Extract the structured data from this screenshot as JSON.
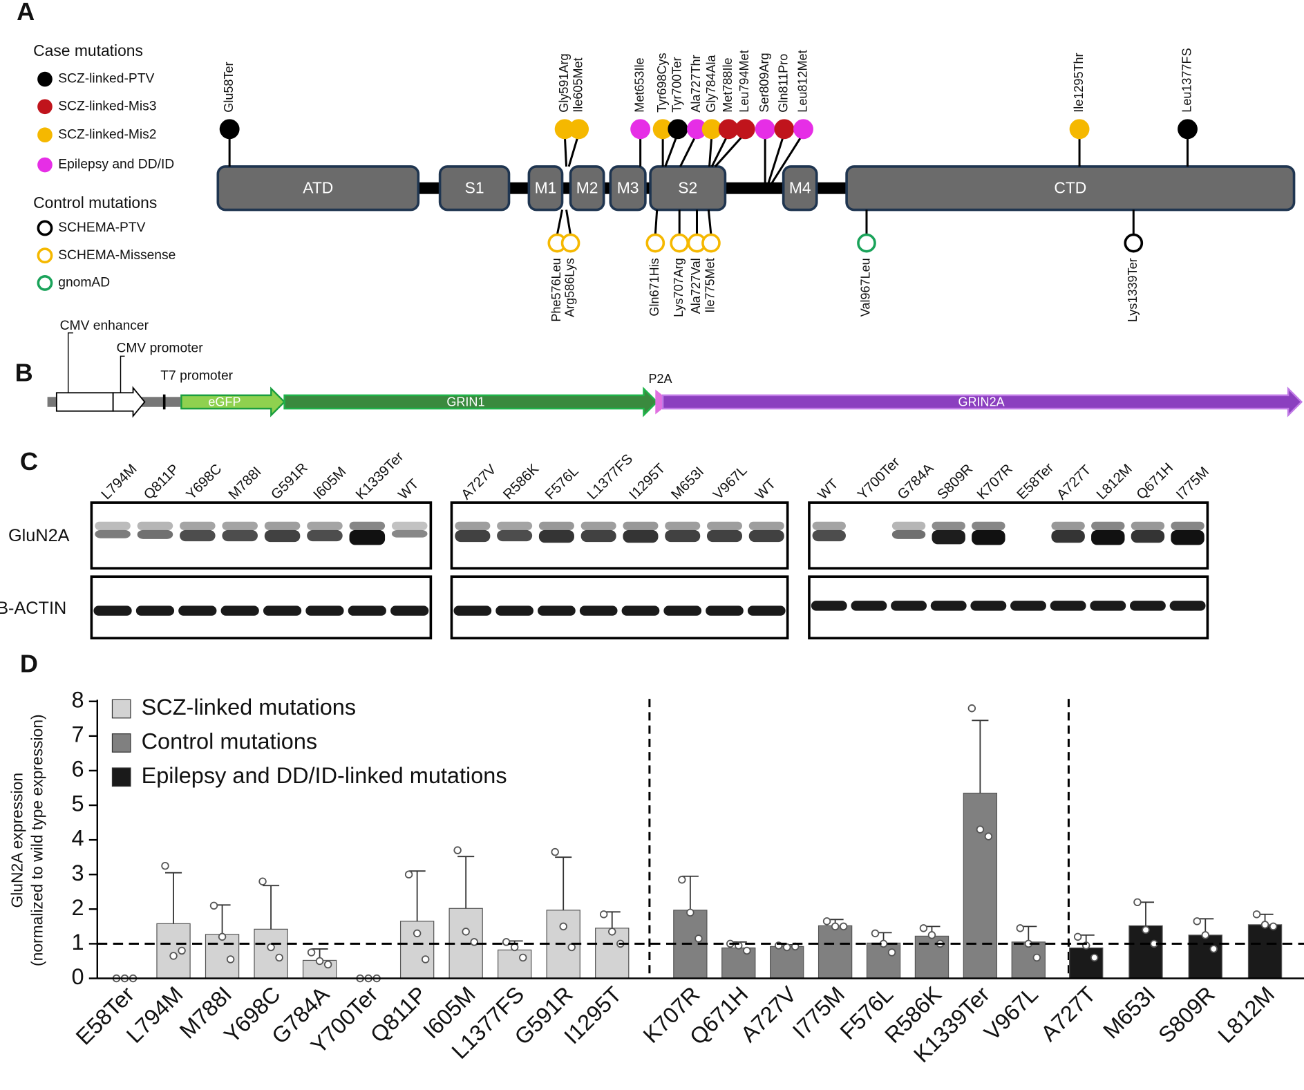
{
  "panel_a": {
    "label": "A",
    "legend": {
      "case_title": "Case mutations",
      "case": [
        {
          "name": "SCZ-linked-PTV",
          "color": "#000000"
        },
        {
          "name": "SCZ-linked-Mis3",
          "color": "#c0141c"
        },
        {
          "name": "SCZ-linked-Mis2",
          "color": "#f5b800"
        },
        {
          "name": "Epilepsy and DD/ID",
          "color": "#e62ee6"
        }
      ],
      "control_title": "Control mutations",
      "control": [
        {
          "name": "SCHEMA-PTV",
          "color": "#000000"
        },
        {
          "name": "SCHEMA-Missense",
          "color": "#f5b800"
        },
        {
          "name": "gnomAD",
          "color": "#1aa35a"
        }
      ]
    },
    "domains": [
      "ATD",
      "S1",
      "M1",
      "M2",
      "M3",
      "S2",
      "M4",
      "CTD"
    ],
    "case_mutations": [
      {
        "label": "Glu58Ter",
        "color": "#000000"
      },
      {
        "label": "Gly591Arg",
        "color": "#f5b800"
      },
      {
        "label": "Ile605Met",
        "color": "#f5b800"
      },
      {
        "label": "Met653Ile",
        "color": "#e62ee6"
      },
      {
        "label": "Tyr698Cys",
        "color": "#f5b800"
      },
      {
        "label": "Tyr700Ter",
        "color": "#000000"
      },
      {
        "label": "Ala727Thr",
        "color": "#e62ee6"
      },
      {
        "label": "Gly784Ala",
        "color": "#f5b800"
      },
      {
        "label": "Met788Ile",
        "color": "#c0141c"
      },
      {
        "label": "Leu794Met",
        "color": "#c0141c"
      },
      {
        "label": "Ser809Arg",
        "color": "#e62ee6"
      },
      {
        "label": "Gln811Pro",
        "color": "#c0141c"
      },
      {
        "label": "Leu812Met",
        "color": "#e62ee6"
      },
      {
        "label": "Ile1295Thr",
        "color": "#f5b800"
      },
      {
        "label": "Leu1377FS",
        "color": "#000000"
      }
    ],
    "control_mutations": [
      {
        "label": "Phe576Leu",
        "color": "#f5b800"
      },
      {
        "label": "Arg586Lys",
        "color": "#f5b800"
      },
      {
        "label": "Gln671His",
        "color": "#f5b800"
      },
      {
        "label": "Lys707Arg",
        "color": "#f5b800"
      },
      {
        "label": "Ala727Val",
        "color": "#f5b800"
      },
      {
        "label": "Ile775Met",
        "color": "#f5b800"
      },
      {
        "label": "Val967Leu",
        "color": "#1aa35a"
      },
      {
        "label": "Lys1339Ter",
        "color": "#000000"
      }
    ]
  },
  "panel_b": {
    "label": "B",
    "cmv_enhancer": "CMV enhancer",
    "cmv_promoter": "CMV promoter",
    "t7_promoter": "T7 promoter",
    "egfp": "eGFP",
    "grin1": "GRIN1",
    "p2a": "P2A",
    "grin2a": "GRIN2A"
  },
  "panel_c": {
    "label": "C",
    "rows": [
      "GluN2A",
      "B-ACTIN"
    ],
    "groups": [
      {
        "lanes": [
          "L794M",
          "Q811P",
          "Y698C",
          "M788I",
          "G591R",
          "I605M",
          "K1339Ter",
          "WT"
        ]
      },
      {
        "lanes": [
          "A727V",
          "R586K",
          "F576L",
          "L1377FS",
          "I1295T",
          "M653I",
          "V967L",
          "WT"
        ]
      },
      {
        "lanes": [
          "WT",
          "Y700Ter",
          "G784A",
          "S809R",
          "K707R",
          "E58Ter",
          "A727T",
          "L812M",
          "Q671H",
          "I775M"
        ]
      }
    ]
  },
  "panel_d_label": "D",
  "chart_data": {
    "type": "bar",
    "y_label": [
      "GluN2A expression",
      "(normalized to wild type expression)"
    ],
    "categories": [
      "E58Ter",
      "L794M",
      "M788I",
      "Y698C",
      "G784A",
      "Y700Ter",
      "Q811P",
      "I605M",
      "L1377FS",
      "G591R",
      "I1295T",
      "K707R",
      "Q671H",
      "A727V",
      "I775M",
      "F576L",
      "R586K",
      "K1339Ter",
      "V967L",
      "A727T",
      "M653I",
      "S809R",
      "L812M"
    ],
    "series": [
      {
        "name": "SCZ-linked mutations",
        "color": "#d3d3d3",
        "values": [
          0,
          1.58,
          1.27,
          1.42,
          0.52,
          0,
          1.65,
          2.02,
          0.82,
          1.97,
          1.45,
          null,
          null,
          null,
          null,
          null,
          null,
          null,
          null,
          null,
          null,
          null,
          null
        ],
        "errors": [
          0,
          1.47,
          0.85,
          1.26,
          0.33,
          0,
          1.45,
          1.5,
          0.26,
          1.53,
          0.47,
          null,
          null,
          null,
          null,
          null,
          null,
          null,
          null,
          null,
          null,
          null,
          null
        ],
        "points": [
          [
            0,
            0,
            0
          ],
          [
            3.25,
            0.65,
            0.8
          ],
          [
            2.1,
            1.2,
            0.55
          ],
          [
            2.8,
            0.9,
            0.6
          ],
          [
            0.75,
            0.5,
            0.4
          ],
          [
            0,
            0,
            0
          ],
          [
            3.0,
            1.3,
            0.55
          ],
          [
            3.7,
            1.35,
            1.05
          ],
          [
            1.05,
            0.9,
            0.6
          ],
          [
            3.65,
            1.5,
            0.9
          ],
          [
            1.85,
            1.35,
            1.0
          ],
          null,
          null,
          null,
          null,
          null,
          null,
          null,
          null,
          null,
          null,
          null,
          null
        ]
      },
      {
        "name": "Control mutations",
        "color": "#808080",
        "values": [
          null,
          null,
          null,
          null,
          null,
          null,
          null,
          null,
          null,
          null,
          null,
          1.97,
          0.88,
          0.92,
          1.52,
          1.02,
          1.22,
          5.35,
          1.05,
          null,
          null,
          null,
          null
        ],
        "errors": [
          null,
          null,
          null,
          null,
          null,
          null,
          null,
          null,
          null,
          null,
          null,
          0.98,
          0.17,
          0.05,
          0.18,
          0.3,
          0.28,
          2.1,
          0.45,
          null,
          null,
          null,
          null
        ],
        "points": [
          null,
          null,
          null,
          null,
          null,
          null,
          null,
          null,
          null,
          null,
          null,
          [
            2.85,
            1.9,
            1.15
          ],
          [
            1.0,
            0.95,
            0.8
          ],
          [
            0.95,
            0.9,
            0.92
          ],
          [
            1.65,
            1.5,
            1.5
          ],
          [
            1.3,
            1.0,
            0.75
          ],
          [
            1.45,
            1.25,
            1.0
          ],
          [
            7.8,
            4.3,
            4.1
          ],
          [
            1.45,
            1.0,
            0.6
          ],
          null,
          null,
          null,
          null
        ]
      },
      {
        "name": "Epilepsy and DD/ID-linked mutations",
        "color": "#1a1a1a",
        "values": [
          null,
          null,
          null,
          null,
          null,
          null,
          null,
          null,
          null,
          null,
          null,
          null,
          null,
          null,
          null,
          null,
          null,
          null,
          null,
          0.88,
          1.52,
          1.25,
          1.55
        ],
        "errors": [
          null,
          null,
          null,
          null,
          null,
          null,
          null,
          null,
          null,
          null,
          null,
          null,
          null,
          null,
          null,
          null,
          null,
          null,
          null,
          0.37,
          0.68,
          0.47,
          0.3
        ],
        "points": [
          null,
          null,
          null,
          null,
          null,
          null,
          null,
          null,
          null,
          null,
          null,
          null,
          null,
          null,
          null,
          null,
          null,
          null,
          null,
          [
            1.2,
            0.95,
            0.6
          ],
          [
            2.2,
            1.4,
            1.0
          ],
          [
            1.65,
            1.25,
            0.85
          ],
          [
            1.85,
            1.55,
            1.5
          ]
        ]
      }
    ],
    "ylim": [
      0,
      8
    ],
    "yticks": [
      0,
      1,
      2,
      3,
      4,
      5,
      6,
      7,
      8
    ],
    "reference_line": 1,
    "grid": false,
    "legend": "upper-left"
  }
}
